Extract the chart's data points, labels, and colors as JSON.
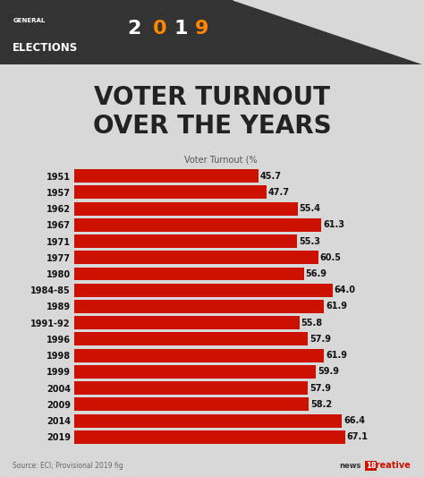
{
  "title_line1": "VOTER TURNOUT",
  "title_line2": "OVER THE YEARS",
  "subtitle": "Voter Turnout (%",
  "source": "Source: ECI; Provisional 2019 fig",
  "years": [
    "1951",
    "1957",
    "1962",
    "1967",
    "1971",
    "1977",
    "1980",
    "1984-85",
    "1989",
    "1991-92",
    "1996",
    "1998",
    "1999",
    "2004",
    "2009",
    "2014",
    "2019"
  ],
  "values": [
    45.7,
    47.7,
    55.4,
    61.3,
    55.3,
    60.5,
    56.9,
    64.0,
    61.9,
    55.8,
    57.9,
    61.9,
    59.9,
    57.9,
    58.2,
    66.4,
    67.1
  ],
  "bg_color": "#d8d8d8",
  "bar_color": "#cc1100",
  "text_color": "#111111",
  "title_color": "#222222",
  "value_color": "#111111",
  "year_color": "#111111",
  "subtitle_color": "#555555",
  "source_color": "#666666",
  "banner_color": "#333333",
  "xlim_max": 72,
  "bar_height": 0.82
}
